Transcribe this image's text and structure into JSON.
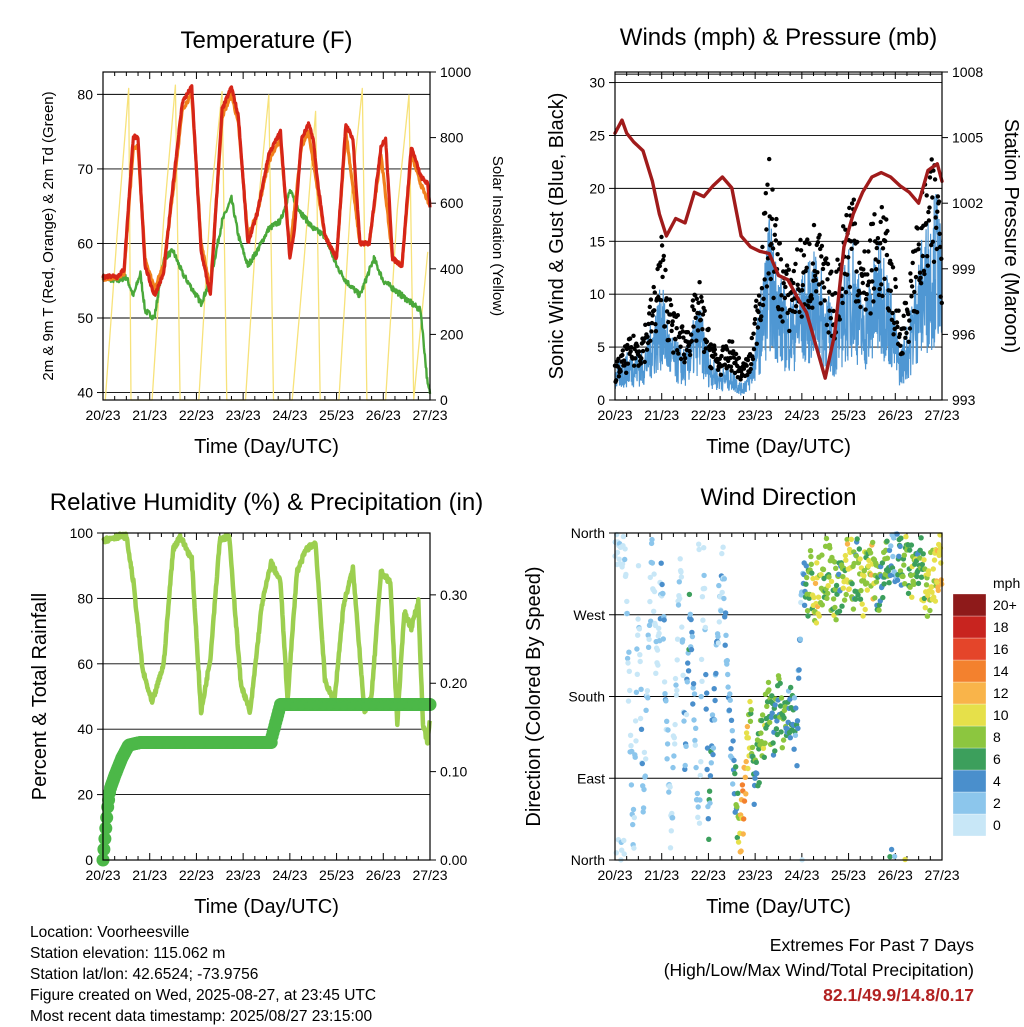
{
  "colors": {
    "t2m": "#d62518",
    "t9m": "#f0801c",
    "td": "#4aa83a",
    "solar": "#f7e27a",
    "gust": "#000000",
    "wind": "#4f97d3",
    "pressure": "#a01b1b",
    "rh": "#9ccf50",
    "precip": "#4cb848",
    "extreme_value": "#b22222"
  },
  "x_ticks": [
    "20/23",
    "21/23",
    "22/23",
    "23/23",
    "24/23",
    "25/23",
    "26/23",
    "27/23"
  ],
  "panels": {
    "temperature": {
      "title": "Temperature (F)",
      "xlabel": "Time (Day/UTC)",
      "ylabel_left": "2m & 9m T (Red, Orange) & 2m Td (Green)",
      "ylabel_right": "Solar Insolation (Yellow)",
      "left_ticks": [
        "40",
        "50",
        "60",
        "70",
        "80"
      ],
      "right_ticks": [
        "0",
        "200",
        "400",
        "600",
        "800",
        "1000"
      ]
    },
    "winds": {
      "title": "Winds (mph) & Pressure (mb)",
      "xlabel": "Time (Day/UTC)",
      "ylabel_left": "Sonic Wind & Gust (Blue, Black)",
      "ylabel_right": "Station Pressure (Maroon)",
      "left_ticks": [
        "0",
        "5",
        "10",
        "15",
        "20",
        "25",
        "30"
      ],
      "right_ticks": [
        "993",
        "996",
        "999",
        "1002",
        "1005",
        "1008"
      ]
    },
    "humidity": {
      "title": "Relative Humidity (%) & Precipitation (in)",
      "xlabel": "Time (Day/UTC)",
      "ylabel_left": "Percent & Total Rainfall",
      "left_ticks": [
        "0",
        "20",
        "40",
        "60",
        "80",
        "100"
      ],
      "right_ticks": [
        "0.00",
        "0.10",
        "0.20",
        "0.30"
      ]
    },
    "direction": {
      "title": "Wind Direction",
      "xlabel": "Time (Day/UTC)",
      "ylabel_left": "Direction (Colored By Speed)",
      "left_ticks": [
        "North",
        "East",
        "South",
        "West",
        "North"
      ],
      "colorbar_title": "mph",
      "colorbar_labels": [
        "0",
        "2",
        "4",
        "6",
        "8",
        "10",
        "12",
        "14",
        "16",
        "18",
        "20+"
      ],
      "colorbar_colors": [
        "#c8e7f7",
        "#8cc6ec",
        "#4a8fcc",
        "#3c9f5c",
        "#8cc63f",
        "#e6e04a",
        "#f9b44a",
        "#f3812e",
        "#e4452a",
        "#c8241f",
        "#8e1a1a"
      ]
    }
  },
  "footer": {
    "location": "Location: Voorheesville",
    "elevation": "Station elevation: 115.062 m",
    "latlon": "Station lat/lon: 42.6524; -73.9756",
    "created": "Figure created on Wed, 2025-08-27, at 23:45 UTC",
    "latest": "Most recent data timestamp: 2025/08/27 23:15:00"
  },
  "extremes": {
    "title": "Extremes For Past 7 Days",
    "subtitle": "(High/Low/Max Wind/Total Precipitation)",
    "values": "82.1/49.9/14.8/0.17"
  },
  "chart_data": [
    {
      "type": "line",
      "title": "Temperature (F)",
      "xlabel": "Time (Day/UTC)",
      "ylabel": "2m & 9m T (Red, Orange) & 2m Td (Green)",
      "y2label": "Solar Insolation (Yellow)",
      "x_unit": "days since 20/23 UTC",
      "ylim": [
        39,
        83
      ],
      "y2lim": [
        0,
        1000
      ],
      "xlim": [
        0,
        7
      ],
      "series": [
        {
          "name": "2m T",
          "axis": "left",
          "x": [
            0,
            0.2,
            0.3,
            0.45,
            0.65,
            0.75,
            0.9,
            1.1,
            1.3,
            1.5,
            1.7,
            1.9,
            2.1,
            2.3,
            2.55,
            2.75,
            2.9,
            3.1,
            3.3,
            3.55,
            3.8,
            4,
            4.1,
            4.25,
            4.4,
            4.5,
            4.6,
            4.75,
            5,
            5.2,
            5.35,
            5.5,
            5.7,
            5.95,
            6.05,
            6.2,
            6.4,
            6.6,
            6.8,
            6.95,
            7.0
          ],
          "y": [
            55.5,
            55.7,
            55.5,
            56.5,
            74.5,
            74,
            57,
            53,
            56,
            68,
            79,
            81,
            59,
            53,
            78,
            81,
            77,
            60,
            64,
            72,
            75,
            58,
            62,
            74,
            76,
            74,
            68,
            61,
            58,
            76,
            74,
            60,
            60,
            73,
            74,
            58,
            57,
            73,
            69,
            68,
            65
          ]
        },
        {
          "name": "9m T",
          "axis": "left",
          "x": [
            0,
            0.3,
            0.45,
            0.65,
            0.75,
            0.9,
            1.1,
            1.3,
            1.5,
            1.7,
            1.9,
            2.1,
            2.3,
            2.55,
            2.75,
            2.9,
            3.1,
            3.3,
            3.55,
            3.8,
            4,
            4.25,
            4.4,
            4.6,
            4.75,
            5,
            5.2,
            5.5,
            5.7,
            5.95,
            6.2,
            6.4,
            6.6,
            6.8,
            7.0
          ],
          "y": [
            55.3,
            55.3,
            56,
            73,
            73,
            58,
            54,
            57,
            67,
            78,
            80,
            60,
            54,
            77,
            80,
            76,
            61,
            64,
            71,
            74,
            59,
            73,
            75,
            67,
            61,
            58,
            75,
            60,
            60,
            72,
            58,
            57,
            72,
            68,
            65
          ]
        },
        {
          "name": "2m Td",
          "axis": "left",
          "x": [
            0,
            0.3,
            0.5,
            0.65,
            0.8,
            0.9,
            1.1,
            1.3,
            1.5,
            1.7,
            1.9,
            2.1,
            2.3,
            2.55,
            2.75,
            2.9,
            3.1,
            3.3,
            3.55,
            3.8,
            4,
            4.25,
            4.5,
            4.75,
            5,
            5.2,
            5.5,
            5.8,
            6.0,
            6.2,
            6.4,
            6.6,
            6.8,
            6.95,
            7.0
          ],
          "y": [
            55.5,
            55,
            55.5,
            53,
            56,
            51,
            50,
            58,
            59,
            56,
            54,
            52,
            55,
            63,
            66,
            61,
            57,
            59,
            62,
            63,
            67,
            64,
            62,
            61,
            57,
            55,
            53,
            58,
            55,
            54,
            53,
            52,
            51,
            41,
            40
          ]
        },
        {
          "name": "Solar Insolation",
          "axis": "right",
          "x": [
            0.05,
            0.3,
            0.55,
            0.6,
            1.05,
            1.3,
            1.55,
            1.65,
            2.05,
            2.3,
            2.55,
            2.65,
            3.05,
            3.3,
            3.55,
            3.65,
            4.05,
            4.3,
            4.55,
            4.65,
            5.05,
            5.3,
            5.55,
            5.65,
            6.05,
            6.3,
            6.55,
            6.65,
            6.95
          ],
          "y": [
            0,
            500,
            950,
            0,
            0,
            550,
            960,
            0,
            0,
            600,
            940,
            0,
            0,
            560,
            930,
            0,
            0,
            420,
            880,
            0,
            0,
            600,
            950,
            0,
            0,
            580,
            930,
            0,
            450
          ]
        }
      ]
    },
    {
      "type": "scatter",
      "title": "Winds (mph) & Pressure (mb)",
      "xlabel": "Time (Day/UTC)",
      "ylabel": "Sonic Wind & Gust (Blue, Black)",
      "y2label": "Station Pressure (Maroon)",
      "x_unit": "days since 20/23 UTC",
      "ylim": [
        0,
        31
      ],
      "y2lim": [
        993,
        1008
      ],
      "xlim": [
        0,
        7
      ],
      "series": [
        {
          "name": "Gust",
          "axis": "left",
          "x": [
            0,
            0.3,
            0.6,
            0.8,
            1.0,
            1.2,
            1.5,
            1.8,
            2.0,
            2.2,
            2.5,
            2.7,
            2.9,
            3.1,
            3.3,
            3.5,
            3.7,
            3.9,
            4.1,
            4.3,
            4.5,
            4.7,
            4.9,
            5.1,
            5.3,
            5.5,
            5.7,
            5.9,
            6.1,
            6.3,
            6.5,
            6.7,
            6.9,
            7.0
          ],
          "y": [
            3,
            5,
            6,
            9,
            14,
            8,
            6,
            10,
            6,
            4,
            5,
            3,
            4,
            12,
            20,
            14,
            11,
            13,
            14,
            15,
            12,
            10,
            16,
            19,
            12,
            15,
            17,
            13,
            7,
            10,
            16,
            19,
            21,
            16
          ]
        },
        {
          "name": "Wind",
          "axis": "left",
          "x": [
            0,
            0.3,
            0.6,
            0.8,
            1.0,
            1.2,
            1.5,
            1.8,
            2.0,
            2.2,
            2.5,
            2.7,
            2.9,
            3.1,
            3.3,
            3.5,
            3.7,
            3.9,
            4.1,
            4.3,
            4.5,
            4.7,
            4.9,
            5.1,
            5.3,
            5.5,
            5.7,
            5.9,
            6.1,
            6.3,
            6.5,
            6.7,
            6.9,
            7.0
          ],
          "y": [
            2,
            3,
            3,
            5,
            7,
            4,
            3,
            6,
            3,
            2,
            2,
            1,
            2,
            6,
            11,
            8,
            6,
            7,
            8,
            9,
            7,
            5,
            8,
            10,
            6,
            8,
            10,
            7,
            3,
            5,
            9,
            11,
            13,
            9
          ]
        },
        {
          "name": "Station Pressure",
          "axis": "right",
          "x": [
            0,
            0.15,
            0.25,
            0.4,
            0.6,
            0.8,
            0.95,
            1.1,
            1.3,
            1.5,
            1.7,
            1.9,
            2.1,
            2.3,
            2.5,
            2.7,
            2.9,
            3.1,
            3.3,
            3.5,
            3.7,
            3.9,
            4.1,
            4.3,
            4.5,
            4.7,
            4.9,
            5.1,
            5.3,
            5.5,
            5.7,
            5.9,
            6.1,
            6.3,
            6.5,
            6.7,
            6.9,
            7.0
          ],
          "y": [
            1005.2,
            1005.8,
            1005.2,
            1004.8,
            1004.4,
            1003,
            1001.5,
            1000.5,
            1001.3,
            1001.1,
            1002.5,
            1002.3,
            1002.8,
            1003.2,
            1002.7,
            1000.5,
            1000,
            999.8,
            999.7,
            998.7,
            998.5,
            997.7,
            997,
            995.5,
            994,
            996,
            1000,
            1001.5,
            1002.5,
            1003.2,
            1003.4,
            1003.2,
            1002.8,
            1002.5,
            1002,
            1003.5,
            1003.8,
            1003
          ]
        }
      ]
    },
    {
      "type": "line",
      "title": "Relative Humidity (%) & Precipitation (in)",
      "xlabel": "Time (Day/UTC)",
      "ylabel": "Percent & Total Rainfall",
      "x_unit": "days since 20/23 UTC",
      "ylim": [
        0,
        100
      ],
      "y2lim": [
        0,
        0.37
      ],
      "xlim": [
        0,
        7
      ],
      "series": [
        {
          "name": "Relative Humidity",
          "axis": "left",
          "x": [
            0,
            0.1,
            0.3,
            0.5,
            0.65,
            0.85,
            1.05,
            1.3,
            1.5,
            1.65,
            1.9,
            2.1,
            2.3,
            2.5,
            2.7,
            2.95,
            3.15,
            3.4,
            3.6,
            3.8,
            3.95,
            4.15,
            4.35,
            4.55,
            4.75,
            4.95,
            5.15,
            5.35,
            5.6,
            5.75,
            5.95,
            6.15,
            6.3,
            6.45,
            6.6,
            6.75,
            6.85,
            6.95,
            7.0
          ],
          "y": [
            98,
            98,
            99,
            99,
            85,
            58,
            48,
            60,
            95,
            99,
            92,
            45,
            62,
            98,
            99,
            54,
            45,
            78,
            91,
            85,
            49,
            88,
            95,
            97,
            55,
            48,
            78,
            89,
            45,
            50,
            88,
            85,
            42,
            76,
            71,
            79,
            41,
            36,
            43
          ]
        },
        {
          "name": "Total Precipitation",
          "axis": "right",
          "x": [
            0,
            0.05,
            0.1,
            0.15,
            0.25,
            0.4,
            0.55,
            0.8,
            1.5,
            2.5,
            3.6,
            3.62,
            3.8,
            4.0,
            5.0,
            6.0,
            7.0
          ],
          "y": [
            0.0,
            0.03,
            0.06,
            0.08,
            0.095,
            0.115,
            0.13,
            0.133,
            0.133,
            0.133,
            0.133,
            0.14,
            0.176,
            0.176,
            0.176,
            0.176,
            0.176
          ]
        }
      ]
    },
    {
      "type": "scatter",
      "title": "Wind Direction",
      "xlabel": "Time (Day/UTC)",
      "ylabel": "Direction (Colored By Speed)",
      "x_unit": "days since 20/23 UTC",
      "y_unit": "degrees (0=North, 90=East, 180=South, 270=West, 360=North)",
      "ylim": [
        0,
        360
      ],
      "xlim": [
        0,
        7
      ],
      "series": [
        {
          "name": "Direction",
          "x": [
            0.2,
            0.4,
            0.5,
            0.6,
            0.8,
            0.9,
            1.0,
            1.2,
            1.4,
            1.5,
            1.6,
            1.8,
            1.9,
            2.0,
            2.2,
            2.3,
            2.5,
            2.6,
            2.7,
            2.8,
            2.9,
            3.0,
            3.1,
            3.2,
            3.3,
            3.4,
            3.5,
            3.6,
            3.7,
            3.8,
            3.9,
            4.0,
            4.1,
            4.2,
            4.3,
            4.5,
            4.7,
            4.8,
            4.9,
            5.0,
            5.1,
            5.2,
            5.3,
            5.4,
            5.5,
            5.6,
            5.7,
            5.8,
            5.9,
            6.0,
            6.1,
            6.2,
            6.3,
            6.4,
            6.5,
            6.6,
            6.7,
            6.8,
            6.9
          ],
          "y": [
            350,
            30,
            300,
            60,
            340,
            200,
            320,
            20,
            345,
            90,
            290,
            10,
            355,
            40,
            250,
            330,
            120,
            60,
            30,
            100,
            150,
            80,
            120,
            145,
            165,
            140,
            170,
            150,
            160,
            155,
            130,
            330,
            300,
            310,
            290,
            325,
            300,
            295,
            310,
            330,
            310,
            320,
            300,
            315,
            325,
            300,
            310,
            330,
            345,
            335,
            320,
            330,
            310,
            315,
            325,
            320,
            300,
            310,
            325
          ],
          "speed": [
            1,
            2,
            1,
            3,
            2,
            1,
            4,
            2,
            1,
            3,
            5,
            1,
            2,
            6,
            3,
            2,
            4,
            7,
            12,
            14,
            8,
            6,
            7,
            9,
            8,
            6,
            7,
            8,
            5,
            6,
            4,
            3,
            7,
            9,
            11,
            8,
            10,
            6,
            9,
            12,
            8,
            7,
            10,
            9,
            11,
            8,
            6,
            8,
            5,
            4,
            7,
            9,
            8,
            10,
            6,
            9,
            11,
            10,
            12
          ]
        }
      ]
    }
  ]
}
